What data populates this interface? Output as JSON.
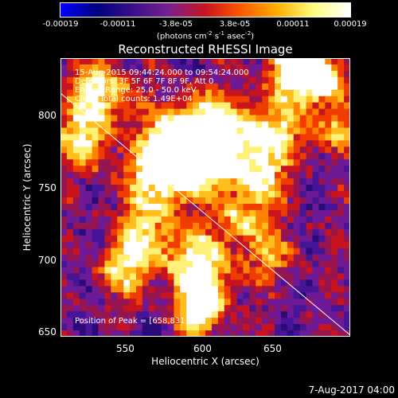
{
  "colorbar": {
    "ticks": [
      "-0.00019",
      "-0.00011",
      "-3.8e-05",
      "3.8e-05",
      "0.00011",
      "0.00019"
    ],
    "unit_prefix": "(photons cm",
    "unit_exp1": "-2",
    "unit_mid": " s",
    "unit_exp2": "-1",
    "unit_mid2": " asec",
    "unit_exp3": "-2",
    "unit_suffix": ")",
    "colors": [
      "#0000ff",
      "#00007f",
      "#3a0f8a",
      "#7a1f8f",
      "#c8141f",
      "#ff5a00",
      "#ffb000",
      "#ffff80",
      "#ffffff"
    ]
  },
  "title": "Reconstructed RHESSI Image",
  "info": {
    "line1": "15-Aug-2015 09:44:24.000 to 09:54:24.000",
    "line2": "Detectors: 3F 5F 6F 7F 8F 9F, Att 0",
    "line3": "Energy Range: 25.0 - 50.0 keV",
    "line4": "Clean     Total counts: 1.49E+04",
    "peak": "Position of Peak = [658,831]"
  },
  "chart_data": {
    "type": "heatmap",
    "title": "Reconstructed RHESSI Image",
    "xlabel": "Heliocentric X (arcsec)",
    "ylabel": "Heliocentric Y (arcsec)",
    "xlim": [
      505,
      690
    ],
    "ylim": [
      647,
      822
    ],
    "xticks": [
      "550",
      "600",
      "650"
    ],
    "yticks": [
      "650",
      "700",
      "750",
      "800"
    ],
    "colorbar_range": [
      -0.00019,
      0.00019
    ],
    "limb_line": {
      "x": [
        505,
        690
      ],
      "y": [
        800,
        648
      ]
    },
    "peak": [
      658,
      831
    ]
  },
  "timestamp": "7-Aug-2017 04:00"
}
